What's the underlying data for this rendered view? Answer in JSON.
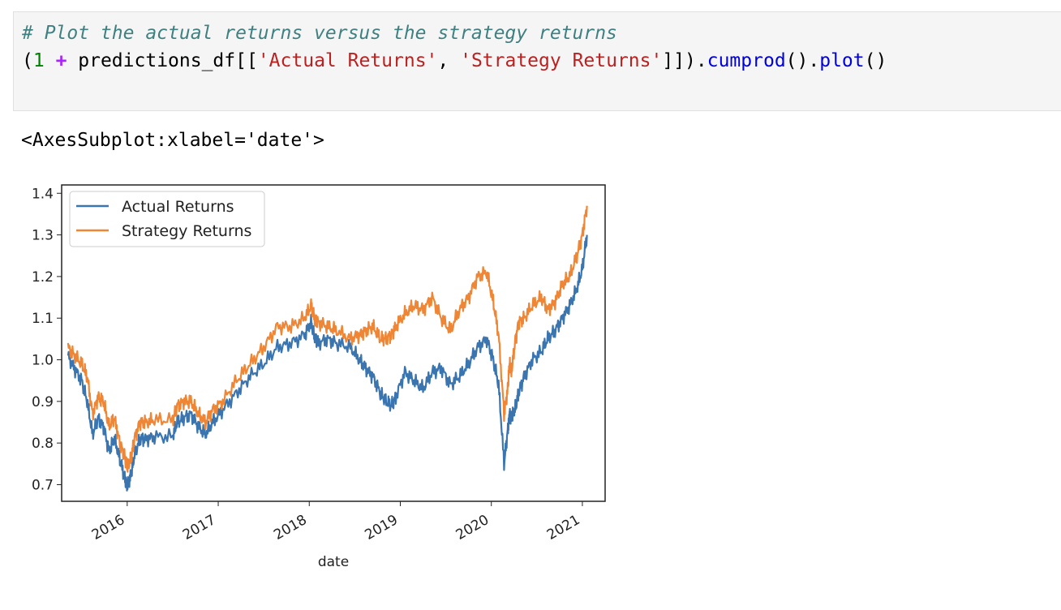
{
  "code": {
    "comment": "# Plot the actual returns versus the strategy returns",
    "line2": {
      "p1": "(",
      "one": "1",
      "plus": " + ",
      "var": "predictions_df[[",
      "s1": "'Actual Returns'",
      "comma": ", ",
      "s2": "'Strategy Returns'",
      "close": "]]).",
      "m1": "cumprod",
      "paren1": "().",
      "m2": "plot",
      "paren2": "()"
    }
  },
  "output_text": "<AxesSubplot:xlabel='date'>",
  "chart_data": {
    "type": "line",
    "xlabel": "date",
    "ylabel": "",
    "xlim": [
      2015.28,
      2021.25
    ],
    "ylim": [
      0.66,
      1.42
    ],
    "x_ticks": [
      "2016",
      "2017",
      "2018",
      "2019",
      "2020",
      "2021"
    ],
    "y_ticks": [
      "0.7",
      "0.8",
      "0.9",
      "1.0",
      "1.1",
      "1.2",
      "1.3",
      "1.4"
    ],
    "legend_position": "upper-left",
    "grid": false,
    "series": [
      {
        "name": "Actual Returns",
        "color": "#3b75af",
        "x": [
          2015.35,
          2015.42,
          2015.5,
          2015.56,
          2015.62,
          2015.68,
          2015.74,
          2015.8,
          2015.86,
          2015.92,
          2015.97,
          2016.0,
          2016.04,
          2016.08,
          2016.14,
          2016.2,
          2016.3,
          2016.5,
          2016.55,
          2016.62,
          2016.7,
          2016.78,
          2016.86,
          2016.94,
          2017.05,
          2017.2,
          2017.35,
          2017.5,
          2017.65,
          2017.8,
          2017.95,
          2018.02,
          2018.06,
          2018.1,
          2018.2,
          2018.3,
          2018.45,
          2018.55,
          2018.62,
          2018.7,
          2018.78,
          2018.84,
          2018.9,
          2018.95,
          2019.05,
          2019.15,
          2019.25,
          2019.35,
          2019.45,
          2019.55,
          2019.65,
          2019.75,
          2019.85,
          2019.95,
          2020.02,
          2020.08,
          2020.14,
          2020.18,
          2020.2,
          2020.22,
          2020.26,
          2020.3,
          2020.36,
          2020.45,
          2020.55,
          2020.62,
          2020.7,
          2020.78,
          2020.86,
          2020.94,
          2021.0,
          2021.05
        ],
        "y": [
          1.01,
          0.98,
          0.95,
          0.9,
          0.82,
          0.86,
          0.84,
          0.78,
          0.81,
          0.76,
          0.72,
          0.7,
          0.72,
          0.77,
          0.81,
          0.81,
          0.815,
          0.815,
          0.85,
          0.86,
          0.87,
          0.84,
          0.82,
          0.85,
          0.88,
          0.92,
          0.96,
          0.99,
          1.03,
          1.04,
          1.06,
          1.09,
          1.05,
          1.04,
          1.05,
          1.04,
          1.03,
          1.0,
          0.98,
          0.96,
          0.92,
          0.9,
          0.89,
          0.91,
          0.97,
          0.95,
          0.93,
          0.97,
          0.98,
          0.94,
          0.96,
          0.99,
          1.03,
          1.05,
          1.0,
          0.94,
          0.75,
          0.83,
          0.87,
          0.86,
          0.88,
          0.92,
          0.96,
          1.0,
          1.02,
          1.05,
          1.07,
          1.1,
          1.13,
          1.17,
          1.22,
          1.3
        ]
      },
      {
        "name": "Strategy Returns",
        "color": "#ef8636",
        "x": [
          2015.35,
          2015.42,
          2015.5,
          2015.56,
          2015.62,
          2015.68,
          2015.74,
          2015.8,
          2015.86,
          2015.92,
          2015.97,
          2016.0,
          2016.04,
          2016.08,
          2016.14,
          2016.2,
          2016.3,
          2016.5,
          2016.55,
          2016.62,
          2016.7,
          2016.78,
          2016.86,
          2016.94,
          2017.05,
          2017.2,
          2017.35,
          2017.5,
          2017.65,
          2017.8,
          2017.95,
          2018.02,
          2018.06,
          2018.1,
          2018.2,
          2018.3,
          2018.45,
          2018.55,
          2018.62,
          2018.7,
          2018.78,
          2018.84,
          2018.9,
          2018.95,
          2019.05,
          2019.15,
          2019.25,
          2019.35,
          2019.45,
          2019.55,
          2019.65,
          2019.75,
          2019.85,
          2019.95,
          2020.02,
          2020.08,
          2020.14,
          2020.18,
          2020.2,
          2020.22,
          2020.26,
          2020.3,
          2020.36,
          2020.45,
          2020.55,
          2020.62,
          2020.7,
          2020.78,
          2020.86,
          2020.94,
          2021.0,
          2021.05
        ],
        "y": [
          1.03,
          1.01,
          0.99,
          0.96,
          0.87,
          0.91,
          0.9,
          0.84,
          0.86,
          0.8,
          0.77,
          0.74,
          0.76,
          0.81,
          0.85,
          0.85,
          0.855,
          0.855,
          0.89,
          0.9,
          0.9,
          0.87,
          0.85,
          0.88,
          0.9,
          0.95,
          0.99,
          1.03,
          1.08,
          1.08,
          1.1,
          1.13,
          1.1,
          1.09,
          1.08,
          1.07,
          1.05,
          1.06,
          1.07,
          1.08,
          1.05,
          1.05,
          1.06,
          1.08,
          1.11,
          1.13,
          1.12,
          1.15,
          1.1,
          1.07,
          1.12,
          1.15,
          1.2,
          1.21,
          1.14,
          1.06,
          0.87,
          0.93,
          0.99,
          0.97,
          1.04,
          1.09,
          1.1,
          1.13,
          1.15,
          1.12,
          1.14,
          1.18,
          1.2,
          1.25,
          1.3,
          1.37
        ]
      }
    ]
  }
}
